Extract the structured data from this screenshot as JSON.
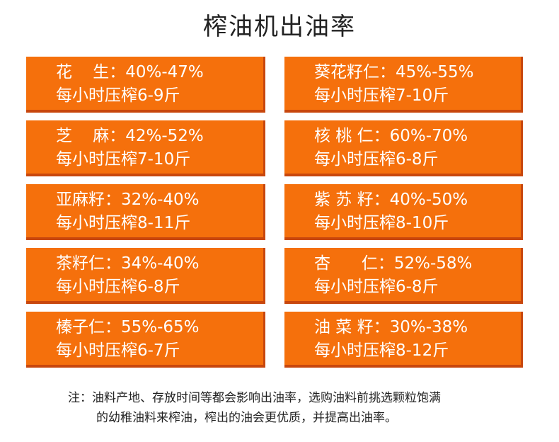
{
  "title": "榨油机出油率",
  "items": [
    {
      "name": "花    生",
      "rate": "：40%-47%",
      "yield": "每小时压榨6-9斤"
    },
    {
      "name": "葵花籽仁",
      "rate": "：45%-55%",
      "yield": "每小时压榨7-10斤"
    },
    {
      "name": "芝    麻",
      "rate": "：42%-52%",
      "yield": "每小时压榨7-10斤"
    },
    {
      "name": "核 桃 仁",
      "rate": "：60%-70%",
      "yield": "每小时压榨6-8斤"
    },
    {
      "name": "亚麻籽",
      "rate": "：32%-40%",
      "yield": "每小时压榨8-11斤"
    },
    {
      "name": "紫 苏 籽",
      "rate": "：40%-50%",
      "yield": "每小时压榨8-10斤"
    },
    {
      "name": "茶籽仁",
      "rate": "：34%-40%",
      "yield": "每小时压榨6-8斤"
    },
    {
      "name": "杏      仁",
      "rate": "：52%-58%",
      "yield": "每小时压榨6-8斤"
    },
    {
      "name": "榛子仁",
      "rate": "：55%-65%",
      "yield": "每小时压榨6-7斤"
    },
    {
      "name": "油 菜 籽",
      "rate": "：30%-38%",
      "yield": "每小时压榨8-12斤"
    }
  ],
  "note": {
    "line1": "注：油料产地、存放时间等都会影响出油率，选购油料前挑选颗粒饱满",
    "line2": "的幼稚油料来榨油，榨出的油会更优质，并提高出油率。"
  },
  "colors": {
    "card": "#f5700c",
    "card_shadow": "#c8470d",
    "text": "#ffffff"
  }
}
